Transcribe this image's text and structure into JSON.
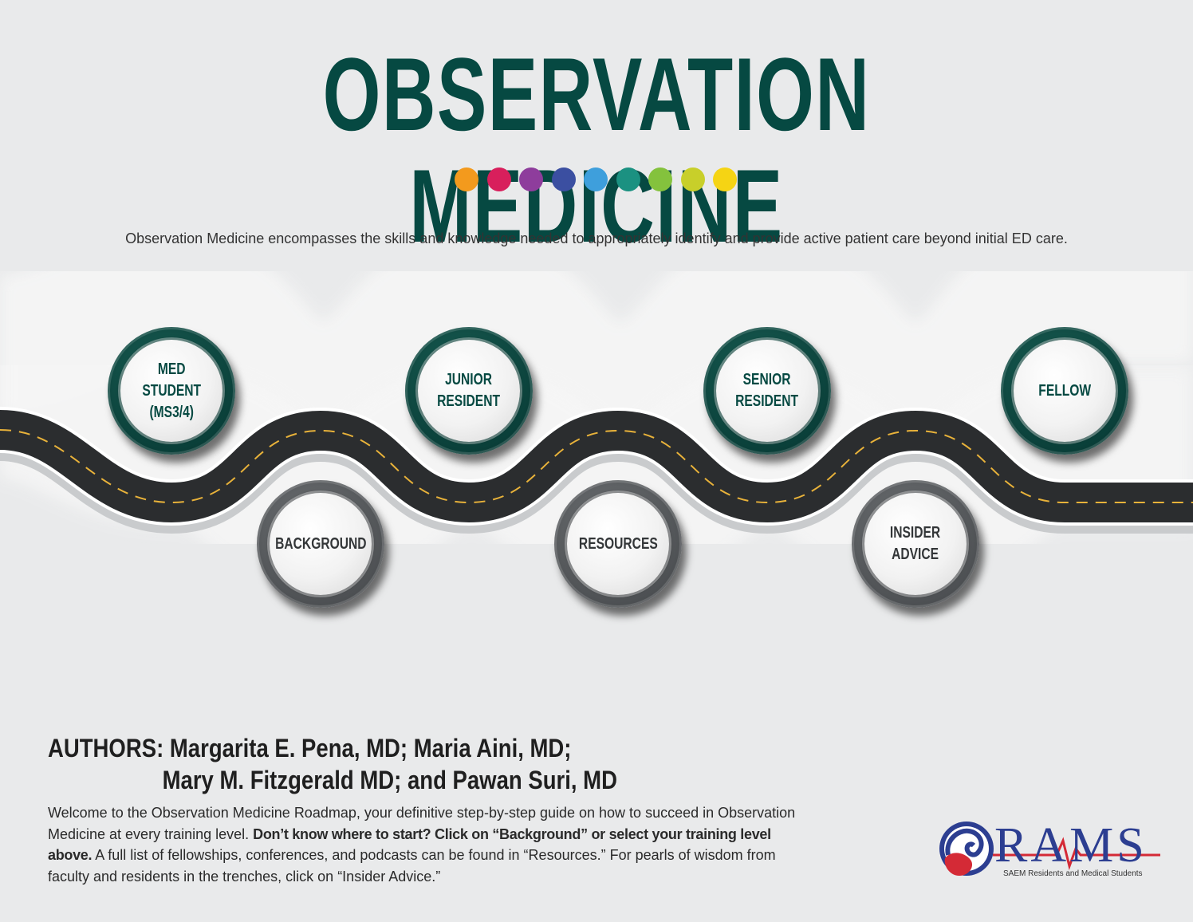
{
  "title": "OBSERVATION MEDICINE",
  "dots": {
    "colors": [
      "#f39a1d",
      "#d81f5c",
      "#8e3d9c",
      "#3b4fa1",
      "#3e9fdc",
      "#1b9181",
      "#84c23d",
      "#c8cf2a",
      "#f5d414"
    ]
  },
  "intro": "Observation Medicine encompasses the skills and knowledge needed to appropriately identify and provide active patient care beyond initial ED care.",
  "stops": {
    "med_student": "MED\nSTUDENT\n(MS3/4)",
    "background": "BACKGROUND",
    "junior_resident": "JUNIOR\nRESIDENT",
    "resources": "RESOURCES",
    "senior_resident": "SENIOR\nRESIDENT",
    "insider_advice": "INSIDER\nADVICE",
    "fellow": "FELLOW"
  },
  "authors": {
    "line1": "AUTHORS: Margarita E. Pena, MD; Maria Aini, MD;",
    "line2": "Mary M. Fitzgerald MD; and Pawan Suri, MD"
  },
  "welcome": {
    "part1": "Welcome to the Observation Medicine Roadmap, your definitive step-by-step guide on how to succeed in Observation Medicine at every training level. ",
    "bold": "Don’t know where to start? Click on “Background” or select your training level above.",
    "part2": " A full list of fellowships, conferences, and podcasts can be found in “Resources.” For pearls of wisdom from faculty and residents in the trenches, click on “Insider Advice.”"
  },
  "logo": {
    "text": "RAMS",
    "subtitle": "SAEM Residents and Medical Students",
    "colors": {
      "blue": "#2c3e91",
      "red": "#d42a36"
    }
  }
}
